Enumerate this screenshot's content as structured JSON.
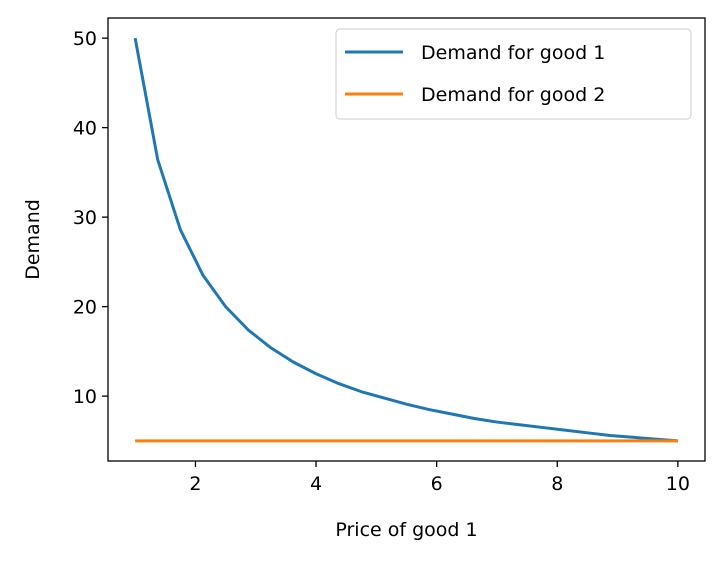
{
  "chart_data": {
    "type": "line",
    "xlabel": "Price of good 1",
    "ylabel": "Demand",
    "xlim": [
      0.55,
      10.45
    ],
    "ylim": [
      2.75,
      52.25
    ],
    "xticks": [
      2,
      4,
      6,
      8,
      10
    ],
    "yticks": [
      10,
      20,
      30,
      40,
      50
    ],
    "grid": false,
    "legend_position": "top-right",
    "x": [
      1.0,
      1.375,
      1.75,
      2.125,
      2.5,
      2.875,
      3.25,
      3.625,
      4.0,
      4.375,
      4.75,
      5.125,
      5.5,
      5.875,
      6.25,
      6.625,
      7.0,
      7.375,
      7.75,
      8.125,
      8.5,
      8.875,
      9.25,
      9.625,
      10.0
    ],
    "series": [
      {
        "name": "Demand for good 1",
        "color": "#1f77b4",
        "values": [
          50.0,
          36.4,
          28.6,
          23.5,
          20.0,
          17.4,
          15.4,
          13.8,
          12.5,
          11.4,
          10.5,
          9.8,
          9.1,
          8.5,
          8.0,
          7.5,
          7.1,
          6.8,
          6.5,
          6.2,
          5.9,
          5.6,
          5.4,
          5.2,
          5.0
        ]
      },
      {
        "name": "Demand for good 2",
        "color": "#ff7f0e",
        "values": [
          5,
          5,
          5,
          5,
          5,
          5,
          5,
          5,
          5,
          5,
          5,
          5,
          5,
          5,
          5,
          5,
          5,
          5,
          5,
          5,
          5,
          5,
          5,
          5,
          5
        ]
      }
    ]
  }
}
